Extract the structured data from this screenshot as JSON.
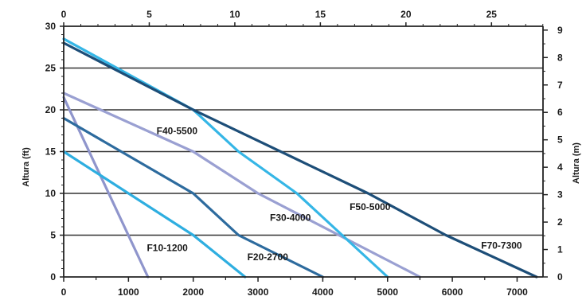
{
  "chart_data": {
    "type": "line",
    "x_bottom": {
      "min": 0,
      "max": 7400,
      "ticks": [
        0,
        1000,
        2000,
        3000,
        4000,
        5000,
        6000,
        7000
      ]
    },
    "x_top": {
      "min": 0,
      "max": 28.01,
      "ticks": [
        0,
        5,
        10,
        15,
        20,
        25
      ]
    },
    "y_left": {
      "label": "Altura (ft)",
      "min": 0,
      "max": 30,
      "ticks": [
        0,
        5,
        10,
        15,
        20,
        25,
        30
      ]
    },
    "y_right": {
      "label": "Altura (m)",
      "min": 0,
      "max": 9.14,
      "ticks": [
        0,
        1,
        2,
        3,
        4,
        5,
        6,
        7,
        8,
        9
      ]
    },
    "grid": {
      "horizontal": true,
      "vertical": false
    },
    "series": [
      {
        "name": "F10-1200",
        "color": "#8f95cc",
        "points": [
          [
            0,
            21.5
          ],
          [
            1300,
            0
          ]
        ]
      },
      {
        "name": "F20-2700",
        "color": "#2eaee0",
        "points": [
          [
            0,
            15
          ],
          [
            2000,
            5
          ],
          [
            2800,
            0
          ]
        ]
      },
      {
        "name": "F30-4000",
        "color": "#2d6b9e",
        "points": [
          [
            0,
            19
          ],
          [
            2000,
            10
          ],
          [
            2700,
            5
          ],
          [
            4000,
            0
          ]
        ]
      },
      {
        "name": "F40-5500",
        "color": "#9aa0d2",
        "points": [
          [
            0,
            22
          ],
          [
            2000,
            15
          ],
          [
            3000,
            10
          ],
          [
            5500,
            0
          ]
        ]
      },
      {
        "name": "F50-5000",
        "color": "#35b6e6",
        "points": [
          [
            0,
            28.5
          ],
          [
            2000,
            20
          ],
          [
            2700,
            15
          ],
          [
            3600,
            10
          ],
          [
            4300,
            5
          ],
          [
            5000,
            0
          ]
        ]
      },
      {
        "name": "F70-7300",
        "color": "#1d4e78",
        "points": [
          [
            0,
            28
          ],
          [
            2000,
            20
          ],
          [
            4700,
            10
          ],
          [
            5900,
            5
          ],
          [
            7300,
            0
          ]
        ]
      }
    ]
  }
}
